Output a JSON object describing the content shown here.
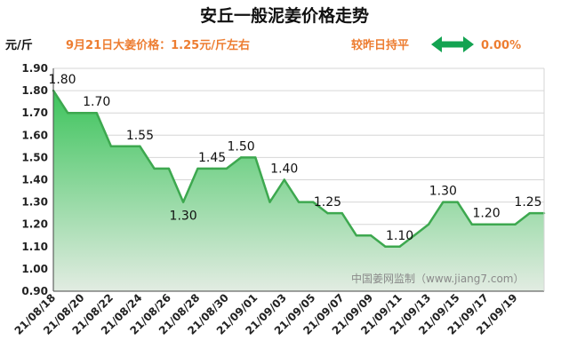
{
  "header": {
    "title": "安丘一般泥姜价格走势",
    "unit": "元/斤",
    "price_note": "9月21日大姜价格：1.25元/斤左右",
    "compare_label": "较昨日持平",
    "change_value": "0.00%"
  },
  "watermark": "中国姜网监制（www.jiang7.com）",
  "colors": {
    "line": "#3da84f",
    "fill_top": "#3dc45c",
    "fill_bottom": "#e2ece2",
    "accent": "#ed7d31",
    "arrow": "#13a351"
  },
  "chart_data": {
    "type": "area",
    "title": "安丘一般泥姜价格走势",
    "ylabel": "元/斤",
    "ylim": [
      0.9,
      1.9
    ],
    "yticks": [
      "0.90",
      "1.00",
      "1.10",
      "1.20",
      "1.30",
      "1.40",
      "1.50",
      "1.60",
      "1.70",
      "1.80",
      "1.90"
    ],
    "xticks": [
      "21/08/18",
      "21/08/20",
      "21/08/22",
      "21/08/24",
      "21/08/26",
      "21/08/28",
      "21/08/30",
      "21/09/01",
      "21/09/03",
      "21/09/05",
      "21/09/07",
      "21/09/09",
      "21/09/11",
      "21/09/13",
      "21/09/15",
      "21/09/17",
      "21/09/19"
    ],
    "grid": true,
    "legend": "none",
    "x": [
      "21/08/18",
      "21/08/19",
      "21/08/20",
      "21/08/21",
      "21/08/22",
      "21/08/23",
      "21/08/24",
      "21/08/25",
      "21/08/26",
      "21/08/27",
      "21/08/28",
      "21/08/29",
      "21/08/30",
      "21/08/31",
      "21/09/01",
      "21/09/02",
      "21/09/03",
      "21/09/04",
      "21/09/05",
      "21/09/06",
      "21/09/07",
      "21/09/08",
      "21/09/09",
      "21/09/10",
      "21/09/11",
      "21/09/12",
      "21/09/13",
      "21/09/14",
      "21/09/15",
      "21/09/16",
      "21/09/17",
      "21/09/18",
      "21/09/19",
      "21/09/20",
      "21/09/21"
    ],
    "values": [
      1.8,
      1.7,
      1.7,
      1.7,
      1.55,
      1.55,
      1.55,
      1.45,
      1.45,
      1.3,
      1.45,
      1.45,
      1.45,
      1.5,
      1.5,
      1.3,
      1.4,
      1.3,
      1.3,
      1.25,
      1.25,
      1.15,
      1.15,
      1.1,
      1.1,
      1.15,
      1.2,
      1.3,
      1.3,
      1.2,
      1.2,
      1.2,
      1.2,
      1.25,
      1.25
    ],
    "data_labels": [
      {
        "x": "21/08/18",
        "text": "1.80"
      },
      {
        "x": "21/08/21",
        "text": "1.70"
      },
      {
        "x": "21/08/24",
        "text": "1.55"
      },
      {
        "x": "21/08/27",
        "text": "1.30"
      },
      {
        "x": "21/08/29",
        "text": "1.45"
      },
      {
        "x": "21/08/31",
        "text": "1.50"
      },
      {
        "x": "21/09/03",
        "text": "1.40"
      },
      {
        "x": "21/09/06",
        "text": "1.25"
      },
      {
        "x": "21/09/11",
        "text": "1.10"
      },
      {
        "x": "21/09/14",
        "text": "1.30"
      },
      {
        "x": "21/09/17",
        "text": "1.20"
      },
      {
        "x": "21/09/20",
        "text": "1.25"
      }
    ]
  }
}
